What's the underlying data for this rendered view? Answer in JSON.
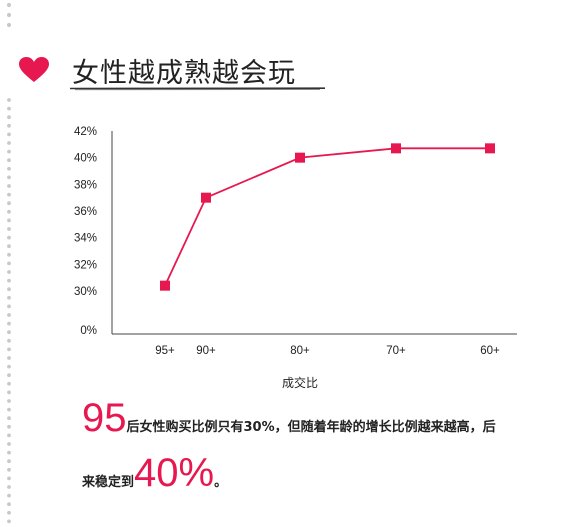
{
  "header": {
    "title": "女性越成熟越会玩",
    "heart_icon": "heart-icon"
  },
  "colors": {
    "accent": "#e6184f",
    "dots": "#c9c9c9",
    "axis": "#444444",
    "text": "#222222"
  },
  "chart_data": {
    "type": "line",
    "xlabel": "成交比",
    "ylabel": "",
    "x": [
      "95+",
      "90+",
      "80+",
      "70+",
      "60+"
    ],
    "series": [
      {
        "values": [
          30.4,
          37.0,
          40.0,
          40.7,
          40.7
        ]
      }
    ],
    "y_ticks": [
      "42%",
      "40%",
      "38%",
      "36%",
      "34%",
      "32%",
      "30%",
      "0%"
    ],
    "ylim": [
      0,
      42
    ],
    "axis_break": "y-axis compressed between 0% and 30%",
    "grid": false,
    "legend": "none"
  },
  "summary": {
    "big1": "95",
    "text1": "后女性购买比例只有30%，但随着年龄的增长比例越来越高，后",
    "text2": "来稳定到",
    "big2": "40%",
    "end": "。"
  }
}
